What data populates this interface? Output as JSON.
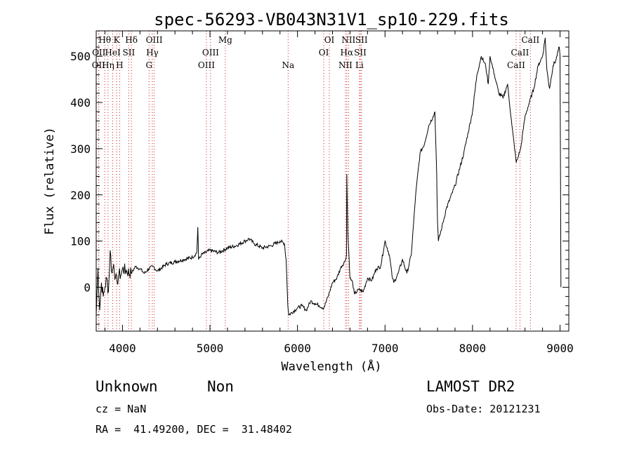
{
  "chart_data": {
    "type": "line",
    "title": "spec-56293-VB043N31V1_sp10-229.fits",
    "xlabel": "Wavelength (Å)",
    "ylabel": "Flux (relative)",
    "xlim": [
      3700,
      9100
    ],
    "ylim": [
      -95,
      555
    ],
    "xticks": [
      4000,
      5000,
      6000,
      7000,
      8000,
      9000
    ],
    "yticks": [
      0,
      100,
      200,
      300,
      400,
      500
    ],
    "grid": false,
    "series": [
      {
        "x": [
          3700,
          3720,
          3740,
          3760,
          3780,
          3800,
          3820,
          3840,
          3860,
          3880,
          3900,
          3920,
          3940,
          3960,
          3980,
          4000,
          4050,
          4100,
          4150,
          4200,
          4250,
          4300,
          4350,
          4400,
          4500,
          4600,
          4700,
          4800,
          4850,
          4861,
          4870,
          4900,
          5000,
          5100,
          5200,
          5300,
          5400,
          5450,
          5500,
          5600,
          5700,
          5800,
          5850,
          5870,
          5890,
          5900,
          6000,
          6050,
          6100,
          6150,
          6200,
          6250,
          6300,
          6350,
          6400,
          6450,
          6500,
          6540,
          6560,
          6563,
          6575,
          6590,
          6600,
          6630,
          6650,
          6700,
          6750,
          6800,
          6850,
          6900,
          6950,
          7000,
          7050,
          7080,
          7100,
          7150,
          7200,
          7250,
          7300,
          7350,
          7400,
          7450,
          7500,
          7550,
          7570,
          7590,
          7600,
          7610,
          7650,
          7700,
          7800,
          7900,
          8000,
          8050,
          8100,
          8150,
          8180,
          8200,
          8250,
          8300,
          8350,
          8400,
          8450,
          8500,
          8550,
          8600,
          8650,
          8700,
          8750,
          8800,
          8830,
          8850,
          8880,
          8920,
          8950,
          8990,
          9000,
          9010
        ],
        "y": [
          -60,
          40,
          -50,
          10,
          -20,
          0,
          20,
          -10,
          80,
          30,
          50,
          20,
          10,
          30,
          25,
          40,
          35,
          30,
          45,
          40,
          30,
          40,
          45,
          35,
          50,
          55,
          60,
          65,
          75,
          130,
          60,
          70,
          80,
          75,
          85,
          90,
          100,
          105,
          95,
          85,
          90,
          100,
          95,
          60,
          -40,
          -60,
          -45,
          -40,
          -50,
          -30,
          -35,
          -40,
          -45,
          -20,
          10,
          20,
          45,
          55,
          70,
          245,
          120,
          60,
          20,
          10,
          -15,
          -5,
          -10,
          20,
          15,
          40,
          45,
          100,
          70,
          25,
          10,
          30,
          60,
          30,
          70,
          200,
          290,
          310,
          350,
          370,
          380,
          250,
          140,
          100,
          130,
          170,
          220,
          290,
          380,
          460,
          500,
          480,
          440,
          500,
          460,
          420,
          410,
          440,
          350,
          270,
          300,
          370,
          400,
          430,
          480,
          500,
          540,
          470,
          430,
          480,
          490,
          520,
          500,
          0
        ]
      }
    ],
    "line_markers": [
      {
        "wavelength": 3727,
        "label": "OII",
        "row": 2
      },
      {
        "wavelength": 3730,
        "label": "OII",
        "row": 1
      },
      {
        "wavelength": 3798,
        "label": "Hθ",
        "row": 0
      },
      {
        "wavelength": 3835,
        "label": "Hη",
        "row": 2
      },
      {
        "wavelength": 3889,
        "label": "HeI",
        "row": 1
      },
      {
        "wavelength": 3934,
        "label": "K",
        "row": 0
      },
      {
        "wavelength": 3968,
        "label": "H",
        "row": 2
      },
      {
        "wavelength": 4072,
        "label": "SII",
        "row": 1
      },
      {
        "wavelength": 4102,
        "label": "Hδ",
        "row": 0
      },
      {
        "wavelength": 4304,
        "label": "G",
        "row": 2
      },
      {
        "wavelength": 4341,
        "label": "Hγ",
        "row": 1
      },
      {
        "wavelength": 4363,
        "label": "OIII",
        "row": 0
      },
      {
        "wavelength": 4959,
        "label": "OIII",
        "row": 2
      },
      {
        "wavelength": 5007,
        "label": "OIII",
        "row": 1
      },
      {
        "wavelength": 5175,
        "label": "Mg",
        "row": 0
      },
      {
        "wavelength": 5893,
        "label": "Na",
        "row": 2
      },
      {
        "wavelength": 6300,
        "label": "OI",
        "row": 1
      },
      {
        "wavelength": 6364,
        "label": "OI",
        "row": 0
      },
      {
        "wavelength": 6548,
        "label": "NII",
        "row": 2
      },
      {
        "wavelength": 6563,
        "label": "Hα",
        "row": 1
      },
      {
        "wavelength": 6583,
        "label": "NII",
        "row": 0
      },
      {
        "wavelength": 6708,
        "label": "Li",
        "row": 2
      },
      {
        "wavelength": 6717,
        "label": "SII",
        "row": 1
      },
      {
        "wavelength": 6731,
        "label": "SII",
        "row": 0
      },
      {
        "wavelength": 8498,
        "label": "CaII",
        "row": 2
      },
      {
        "wavelength": 8542,
        "label": "CaII",
        "row": 1
      },
      {
        "wavelength": 8662,
        "label": "CaII",
        "row": 0
      }
    ]
  },
  "info": {
    "class_label": "Unknown",
    "subclass_label": "Non",
    "survey": "LAMOST DR2",
    "cz": "cz = NaN",
    "obs_date": "Obs-Date: 20121231",
    "coords": "RA =  41.49200, DEC =  31.48402"
  }
}
